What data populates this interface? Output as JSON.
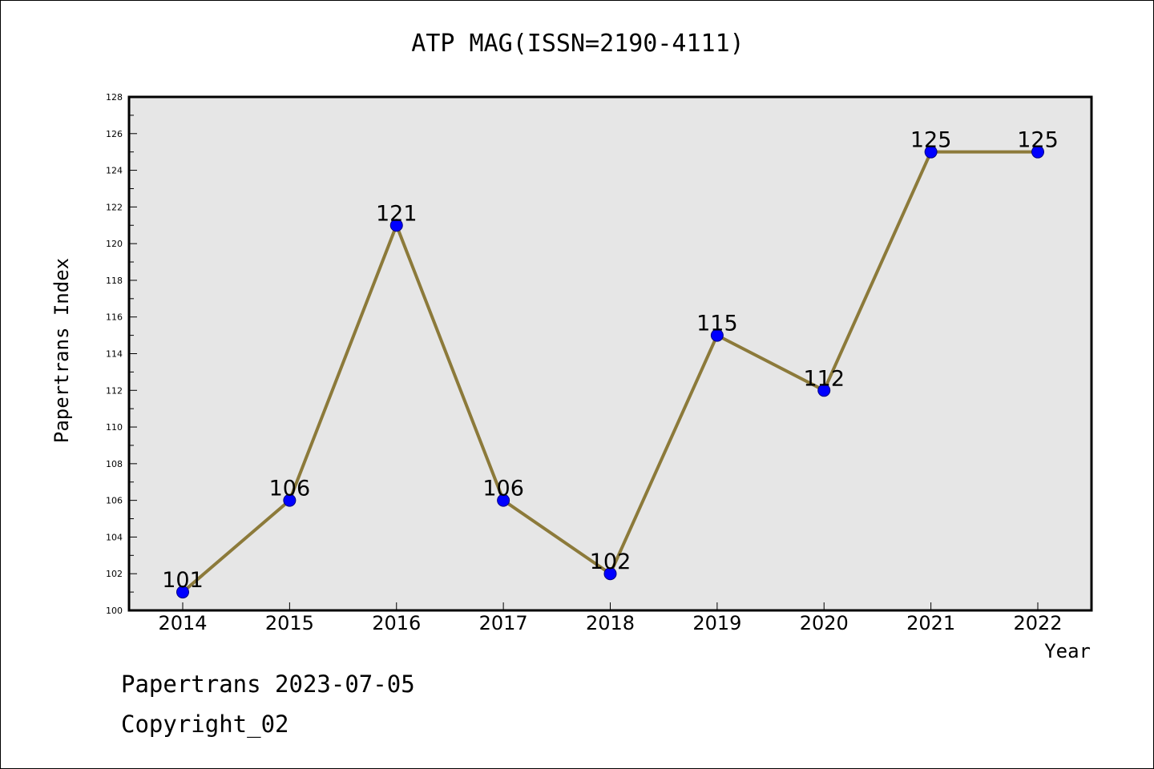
{
  "chart_data": {
    "type": "line",
    "title": "ATP MAG(ISSN=2190-4111)",
    "xlabel": "Year",
    "ylabel": "Papertrans Index",
    "categories": [
      "2014",
      "2015",
      "2016",
      "2017",
      "2018",
      "2019",
      "2020",
      "2021",
      "2022"
    ],
    "series": [
      {
        "values": [
          101,
          106,
          121,
          106,
          102,
          115,
          112,
          125,
          125
        ]
      }
    ],
    "data_labels": [
      "101",
      "106",
      "121",
      "106",
      "102",
      "115",
      "112",
      "125",
      "125"
    ],
    "ylim": [
      100,
      128
    ],
    "y_ticks": [
      "100",
      "102",
      "104",
      "106",
      "108",
      "110",
      "112",
      "114",
      "116",
      "118",
      "120",
      "122",
      "124",
      "126",
      "128"
    ],
    "grid": false,
    "colors": {
      "line": "#8c7a3a",
      "marker_fill": "#0000ff",
      "marker_edge": "#000080",
      "plot_background": "#e6e6e6"
    }
  },
  "footer": {
    "line1": "Papertrans 2023-07-05",
    "line2": "Copyright_02"
  }
}
